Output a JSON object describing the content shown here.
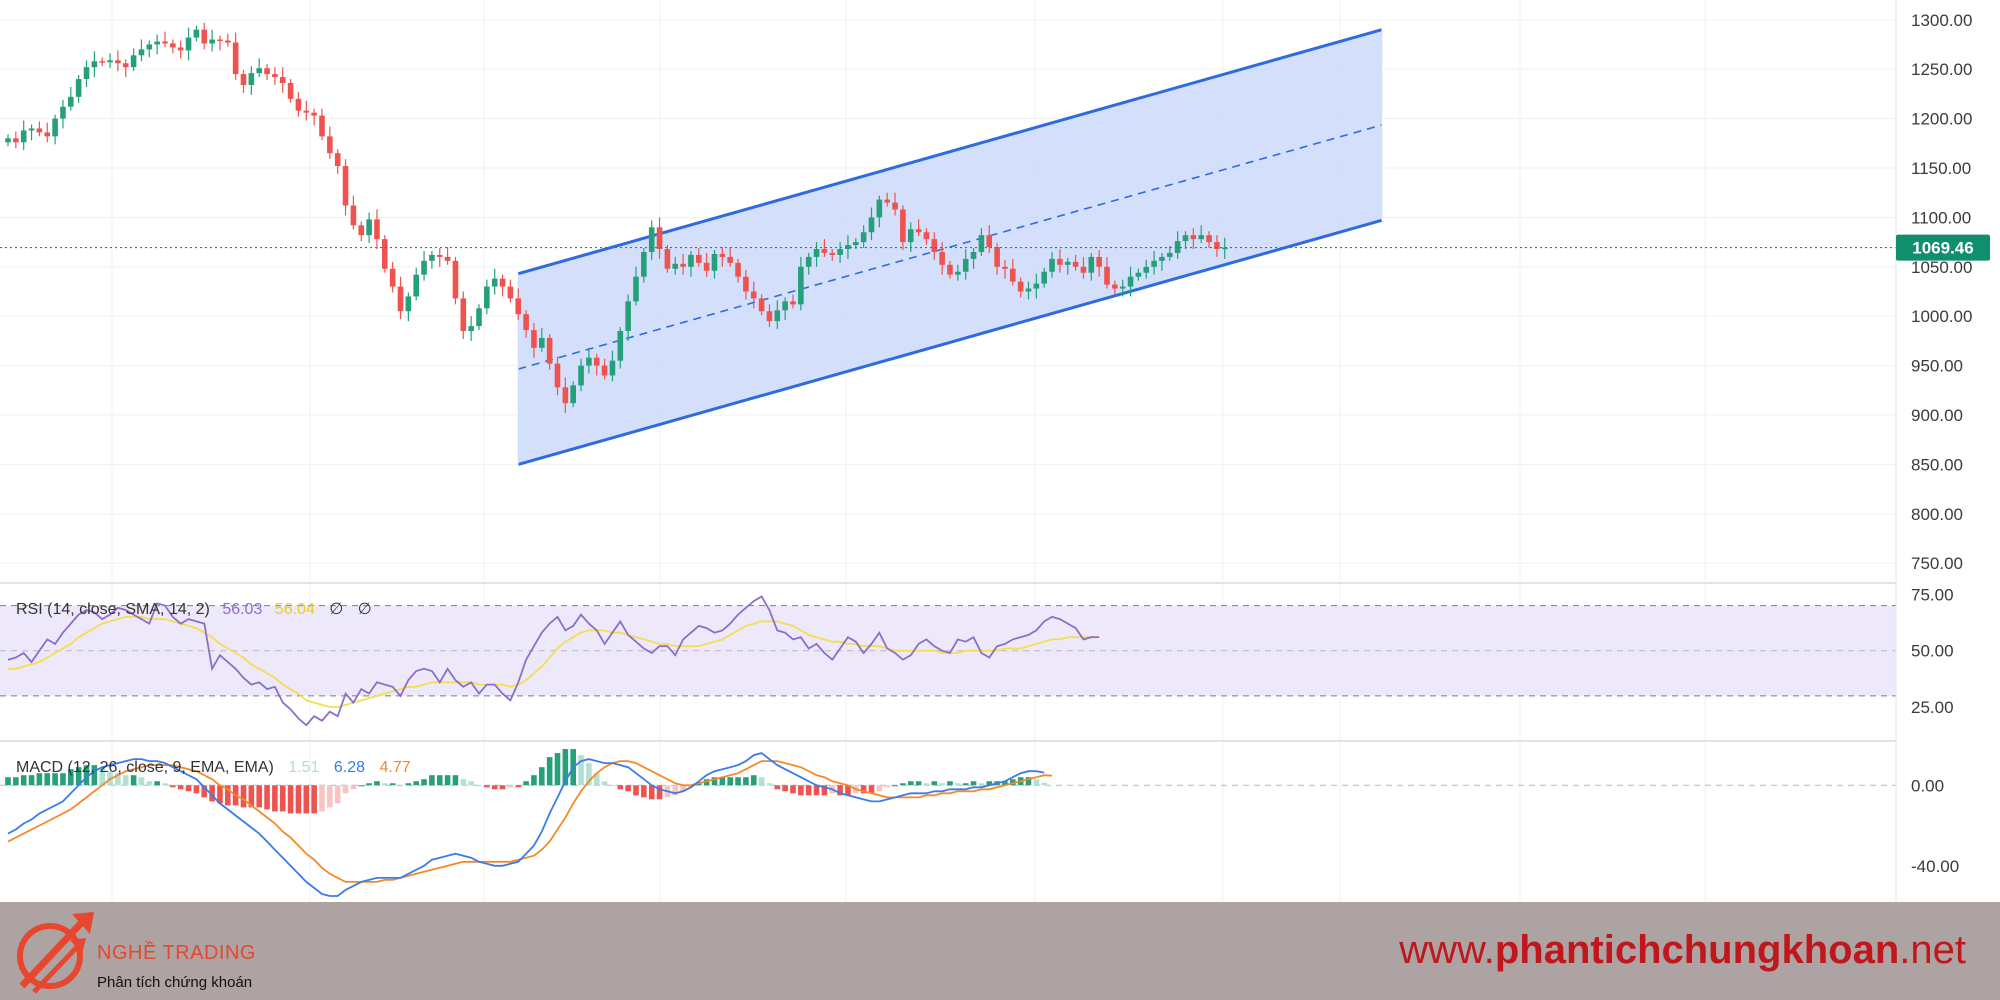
{
  "chart_data": [
    {
      "type": "candlestick",
      "panel": "price",
      "last_price_label": "1069.46",
      "y_ticks": [
        "1300.00",
        "1250.00",
        "1200.00",
        "1150.00",
        "1100.00",
        "1050.00",
        "1000.00",
        "950.00",
        "900.00",
        "850.00",
        "800.00",
        "750.00"
      ],
      "ylim": [
        730,
        1320
      ],
      "colors": {
        "up": "#26a07a",
        "down": "#ef5350",
        "channel": "#2f6be0",
        "channel_fill": "#cfdcfb",
        "last_price": "#0f8f6e"
      },
      "closes": [
        1180,
        1176,
        1188,
        1190,
        1186,
        1182,
        1200,
        1212,
        1222,
        1240,
        1252,
        1258,
        1257,
        1259,
        1256,
        1252,
        1264,
        1270,
        1275,
        1278,
        1276,
        1272,
        1269,
        1282,
        1290,
        1276,
        1280,
        1279,
        1277,
        1245,
        1234,
        1246,
        1251,
        1245,
        1242,
        1236,
        1220,
        1208,
        1206,
        1203,
        1182,
        1165,
        1152,
        1112,
        1092,
        1082,
        1098,
        1078,
        1048,
        1030,
        1005,
        1020,
        1042,
        1056,
        1062,
        1060,
        1056,
        1018,
        985,
        990,
        1008,
        1030,
        1038,
        1030,
        1018,
        1002,
        986,
        968,
        978,
        952,
        928,
        912,
        930,
        950,
        958,
        950,
        940,
        955,
        985,
        1015,
        1040,
        1065,
        1090,
        1068,
        1048,
        1053,
        1050,
        1062,
        1054,
        1046,
        1063,
        1060,
        1054,
        1040,
        1025,
        1018,
        1005,
        995,
        1006,
        1015,
        1012,
        1050,
        1060,
        1068,
        1064,
        1062,
        1068,
        1072,
        1075,
        1085,
        1100,
        1118,
        1115,
        1108,
        1075,
        1088,
        1085,
        1078,
        1065,
        1052,
        1042,
        1045,
        1058,
        1065,
        1082,
        1070,
        1050,
        1048,
        1035,
        1025,
        1028,
        1033,
        1045,
        1058,
        1052,
        1055,
        1050,
        1044,
        1060,
        1050,
        1032,
        1028,
        1030,
        1040,
        1044,
        1050,
        1056,
        1060,
        1064,
        1076,
        1082,
        1078,
        1082,
        1075,
        1068,
        1069.46
      ]
    },
    {
      "type": "line",
      "panel": "rsi",
      "legend": {
        "title": "RSI (14, close, SMA, 14, 2)",
        "rsi_value": "56.03",
        "sma_value": "56.04",
        "extra_1": "∅",
        "extra_2": "∅"
      },
      "y_ticks": [
        "75.00",
        "50.00",
        "25.00"
      ],
      "ylim": [
        10,
        80
      ],
      "bands": {
        "upper": 70,
        "middle": 50,
        "lower": 30
      },
      "colors": {
        "rsi": "#8c6fc6",
        "sma": "#f2de4f",
        "band_fill": "#eee9fa"
      },
      "rsi": [
        46,
        47,
        49,
        45,
        50,
        55,
        53,
        58,
        62,
        66,
        68,
        67,
        64,
        66,
        69,
        68,
        66,
        64,
        62,
        71,
        70,
        65,
        62,
        64,
        63,
        62,
        42,
        48,
        45,
        42,
        38,
        35,
        36,
        33,
        34,
        27,
        24,
        20,
        17,
        21,
        19,
        23,
        21,
        31,
        27,
        33,
        31,
        36,
        35,
        34,
        30,
        37,
        41,
        42,
        41,
        36,
        42,
        37,
        34,
        36,
        31,
        35,
        35,
        31,
        28,
        36,
        46,
        52,
        58,
        62,
        65,
        59,
        61,
        66,
        62,
        59,
        53,
        58,
        63,
        57,
        54,
        51,
        49,
        52,
        52,
        48,
        55,
        58,
        61,
        60,
        58,
        59,
        62,
        66,
        69,
        72,
        74,
        68,
        59,
        58,
        55,
        56,
        51,
        53,
        49,
        46,
        51,
        56,
        54,
        49,
        53,
        58,
        51,
        49,
        46,
        48,
        53,
        55,
        52,
        50,
        49,
        55,
        54,
        56,
        49,
        47,
        52,
        53,
        55,
        56,
        57,
        59,
        63,
        65,
        64,
        62,
        60,
        55,
        56,
        56.03
      ],
      "sma": [
        42,
        42,
        43,
        44,
        45,
        47,
        49,
        51,
        53,
        56,
        58,
        60,
        62,
        63,
        64,
        65,
        65,
        65,
        64,
        64,
        64,
        63,
        62,
        61,
        60,
        58,
        56,
        53,
        51,
        49,
        47,
        44,
        42,
        40,
        38,
        35,
        33,
        31,
        28,
        27,
        26,
        25,
        25,
        26,
        27,
        28,
        29,
        30,
        31,
        32,
        33,
        34,
        34,
        35,
        36,
        36,
        36,
        36,
        36,
        36,
        35,
        35,
        35,
        35,
        34,
        35,
        37,
        40,
        43,
        47,
        51,
        54,
        56,
        58,
        59,
        59,
        59,
        58,
        58,
        57,
        56,
        55,
        54,
        53,
        53,
        52,
        52,
        52,
        52,
        53,
        54,
        55,
        57,
        59,
        61,
        62,
        63,
        63,
        63,
        62,
        61,
        59,
        57,
        56,
        55,
        54,
        54,
        53,
        53,
        52,
        52,
        52,
        51,
        50,
        50,
        50,
        50,
        50,
        50,
        49,
        49,
        49,
        50,
        50,
        50,
        50,
        50,
        51,
        51,
        51,
        52,
        53,
        54,
        55,
        55,
        56,
        56,
        56,
        56,
        56.04
      ]
    },
    {
      "type": "bar+line",
      "panel": "macd",
      "legend": {
        "title": "MACD (12, 26, close, 9, EMA, EMA)",
        "histogram_value": "1.51",
        "macd_value": "6.28",
        "signal_value": "4.77"
      },
      "y_ticks": [
        "0.00",
        "-40.00"
      ],
      "ylim": [
        -58,
        22
      ],
      "colors": {
        "macd": "#3d7be6",
        "signal": "#f38a2a",
        "hist_up_strong": "#26a07a",
        "hist_up_weak": "#b2e0d3",
        "hist_down_strong": "#ef5350",
        "hist_down_weak": "#f8c3c1"
      },
      "macd": [
        -24,
        -22,
        -19,
        -17,
        -14,
        -12,
        -10,
        -8,
        -4,
        0,
        4,
        7,
        9,
        10,
        11,
        12,
        13,
        13,
        12,
        12,
        11,
        9,
        7,
        5,
        3,
        -1,
        -5,
        -9,
        -12,
        -15,
        -18,
        -21,
        -24,
        -28,
        -32,
        -36,
        -40,
        -44,
        -48,
        -51,
        -54,
        -55,
        -55,
        -52,
        -50,
        -48,
        -47,
        -46,
        -46,
        -46,
        -46,
        -44,
        -42,
        -40,
        -37,
        -36,
        -35,
        -34,
        -35,
        -36,
        -38,
        -39,
        -40,
        -40,
        -39,
        -38,
        -34,
        -30,
        -23,
        -14,
        -6,
        2,
        9,
        12,
        13,
        12,
        11,
        11,
        10,
        9,
        6,
        3,
        0,
        -2,
        -3,
        -4,
        -3,
        -1,
        2,
        5,
        7,
        8,
        9,
        10,
        12,
        15,
        16,
        13,
        10,
        8,
        6,
        4,
        2,
        0,
        -1,
        -2,
        -4,
        -5,
        -6,
        -7,
        -8,
        -8,
        -7,
        -6,
        -5,
        -4,
        -4,
        -4,
        -3,
        -3,
        -2,
        -2,
        -2,
        -1,
        -1,
        0,
        1,
        2,
        4,
        6,
        7,
        7,
        6.28
      ],
      "signal": [
        -28,
        -26,
        -24,
        -22,
        -20,
        -18,
        -16,
        -14,
        -12,
        -9,
        -6,
        -3,
        0,
        3,
        5,
        7,
        8,
        9,
        10,
        10,
        10,
        10,
        9,
        8,
        7,
        5,
        3,
        0,
        -2,
        -5,
        -7,
        -10,
        -13,
        -16,
        -19,
        -23,
        -26,
        -30,
        -34,
        -37,
        -41,
        -44,
        -46,
        -48,
        -48,
        -48,
        -48,
        -48,
        -47,
        -47,
        -46,
        -45,
        -44,
        -43,
        -42,
        -41,
        -40,
        -39,
        -38,
        -38,
        -38,
        -38,
        -38,
        -38,
        -38,
        -37,
        -36,
        -35,
        -32,
        -28,
        -22,
        -16,
        -9,
        -3,
        2,
        6,
        9,
        11,
        12,
        12,
        11,
        9,
        7,
        5,
        3,
        1,
        0,
        0,
        1,
        2,
        3,
        4,
        5,
        6,
        8,
        10,
        12,
        12,
        12,
        11,
        10,
        9,
        7,
        5,
        4,
        2,
        1,
        0,
        -2,
        -3,
        -4,
        -5,
        -6,
        -6,
        -6,
        -6,
        -6,
        -5,
        -5,
        -4,
        -4,
        -3,
        -3,
        -3,
        -2,
        -2,
        -1,
        0,
        1,
        2,
        3,
        4,
        5,
        4.77
      ]
    }
  ],
  "footer": {
    "logo": "nghe-trading-logo",
    "brand_name": "NGHỀ TRADING",
    "brand_tagline": "Phân tích chứng khoán",
    "website_prefix": "www.",
    "website_main": "phantichchungkhoan",
    "website_suffix": ".net"
  }
}
